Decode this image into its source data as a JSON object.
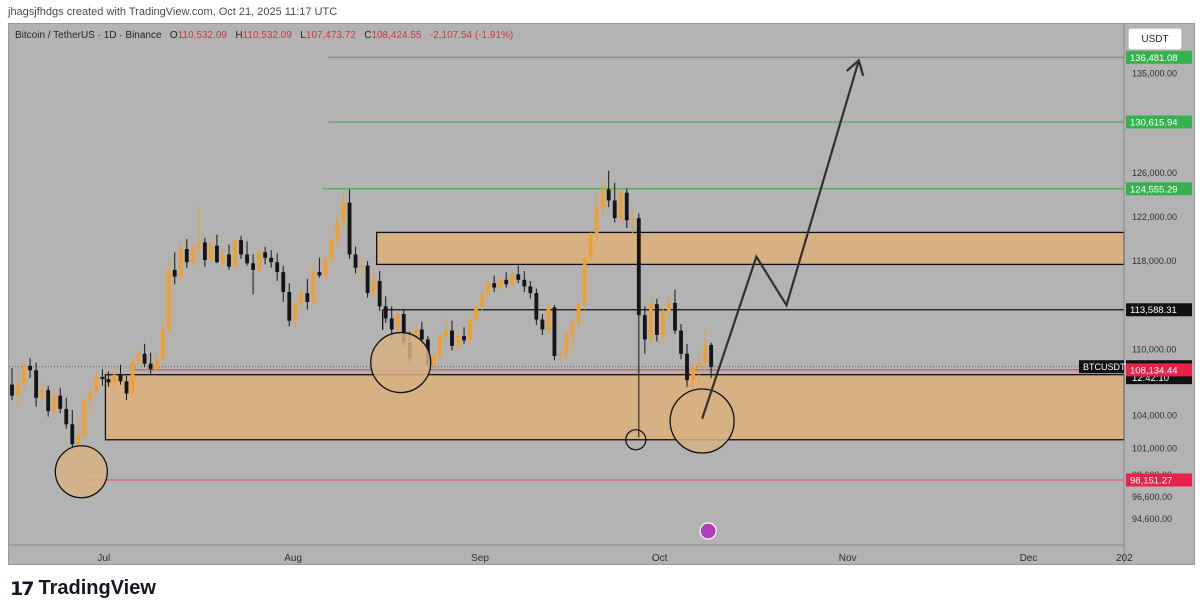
{
  "caption": "jhagsjfhdgs created with TradingView.com, Oct 21, 2025 11:17 UTC",
  "header": {
    "symbol": "Bitcoin / TetherUS · 1D · Binance",
    "open_label": "O",
    "open": "110,532.09",
    "high_label": "H",
    "high": "110,532.09",
    "low_label": "L",
    "low": "107,473.72",
    "close_label": "C",
    "close": "108,424.55",
    "change": "-2,107.54 (-1.91%)"
  },
  "currency_button": "USDT",
  "brand": {
    "logo": "17",
    "name": "TradingView"
  },
  "colors": {
    "background": "#b3b3b3",
    "bull": "#f0a030",
    "bear": "#151515",
    "zone_fill": "#d7b183",
    "resistance_line": "#3dab3d",
    "support_line": "#e04050",
    "projection": "#303030",
    "label_green": "#36b14f",
    "label_red": "#e8234a"
  },
  "chart_data": {
    "type": "candlestick",
    "symbol": "BTCUSDT",
    "timeframe": "1D",
    "x_ticks": [
      "Jul",
      "Aug",
      "Sep",
      "Oct",
      "Nov",
      "Dec",
      "202"
    ],
    "y_ticks": [
      "135,000.00",
      "126,000.00",
      "122,000.00",
      "118,000.00",
      "110,000.00",
      "104,000.00",
      "101,000.00",
      "98,600.00",
      "96,600.00",
      "94,600.00"
    ],
    "y_tick_values": [
      135000,
      126000,
      122000,
      118000,
      110000,
      104000,
      101000,
      98600,
      96600,
      94600
    ],
    "price_labels": [
      {
        "text": "136,481.08",
        "value": 136481.08,
        "style": "green"
      },
      {
        "text": "130,615.94",
        "value": 130615.94,
        "style": "green"
      },
      {
        "text": "124,555.29",
        "value": 124555.29,
        "style": "green"
      },
      {
        "text": "113,588.31",
        "value": 113588.31,
        "style": "black"
      },
      {
        "text": "108,424.55",
        "value": 108424.55,
        "style": "black",
        "tag": "BTCUSDT",
        "countdown": "12:42:10"
      },
      {
        "text": "108,134.44",
        "value": 108134.44,
        "style": "red"
      },
      {
        "text": "98,151.27",
        "value": 98151.27,
        "style": "red"
      }
    ],
    "ohlc_days_from_jun_15": [
      [
        0,
        106800,
        108300,
        105400,
        105800
      ],
      [
        1,
        105800,
        107900,
        104600,
        106900
      ],
      [
        2,
        106900,
        108900,
        106200,
        108500
      ],
      [
        3,
        108500,
        109200,
        107400,
        108100
      ],
      [
        4,
        108100,
        108800,
        104800,
        105600
      ],
      [
        5,
        105600,
        107000,
        105200,
        106300
      ],
      [
        6,
        106300,
        106700,
        103900,
        104400
      ],
      [
        7,
        104400,
        106200,
        104000,
        105800
      ],
      [
        8,
        105800,
        106500,
        104200,
        104600
      ],
      [
        9,
        104600,
        105600,
        102800,
        103200
      ],
      [
        10,
        103200,
        104500,
        100900,
        101400
      ],
      [
        11,
        101400,
        103800,
        99600,
        102200
      ],
      [
        12,
        102200,
        105600,
        101800,
        105400
      ],
      [
        13,
        105400,
        106600,
        104300,
        106100
      ],
      [
        14,
        106100,
        108100,
        105900,
        107500
      ],
      [
        15,
        107500,
        108200,
        106700,
        107300
      ],
      [
        16,
        107300,
        108000,
        106600,
        107000
      ],
      [
        17,
        107000,
        108400,
        106500,
        107700
      ],
      [
        18,
        107700,
        108600,
        106800,
        107100
      ],
      [
        19,
        107100,
        107600,
        105400,
        106000
      ],
      [
        20,
        106000,
        109400,
        105800,
        108900
      ],
      [
        21,
        108900,
        110200,
        108300,
        109600
      ],
      [
        22,
        109600,
        110500,
        108400,
        108700
      ],
      [
        23,
        108700,
        109700,
        107800,
        108200
      ],
      [
        24,
        108200,
        109400,
        107900,
        109100
      ],
      [
        25,
        109100,
        112600,
        108900,
        111800
      ],
      [
        26,
        111800,
        118200,
        111500,
        117200
      ],
      [
        27,
        117200,
        118800,
        115900,
        116600
      ],
      [
        28,
        116600,
        119600,
        116200,
        119100
      ],
      [
        29,
        119100,
        120000,
        117400,
        117900
      ],
      [
        30,
        117900,
        119600,
        117600,
        119200
      ],
      [
        31,
        119200,
        123100,
        118400,
        119700
      ],
      [
        32,
        119700,
        120100,
        117500,
        118100
      ],
      [
        33,
        118100,
        120300,
        117800,
        119400
      ],
      [
        34,
        119400,
        120400,
        117800,
        117900
      ],
      [
        35,
        117900,
        119200,
        117300,
        118600
      ],
      [
        36,
        118600,
        119500,
        117200,
        117500
      ],
      [
        37,
        117500,
        120100,
        117300,
        119900
      ],
      [
        38,
        119900,
        120300,
        118200,
        118600
      ],
      [
        39,
        118600,
        119800,
        117600,
        117800
      ],
      [
        40,
        117800,
        118600,
        115000,
        117200
      ],
      [
        41,
        117200,
        119200,
        116900,
        118800
      ],
      [
        42,
        118800,
        119300,
        117700,
        118300
      ],
      [
        43,
        118300,
        119000,
        117400,
        117900
      ],
      [
        44,
        117900,
        118700,
        116200,
        117000
      ],
      [
        45,
        117000,
        117600,
        114300,
        115200
      ],
      [
        46,
        115200,
        116000,
        112100,
        112600
      ],
      [
        47,
        112600,
        114400,
        111900,
        114200
      ],
      [
        48,
        114200,
        115800,
        113800,
        115100
      ],
      [
        49,
        115100,
        116400,
        113600,
        114300
      ],
      [
        50,
        114300,
        117700,
        114000,
        117000
      ],
      [
        51,
        117000,
        118300,
        116500,
        116700
      ],
      [
        52,
        116700,
        118500,
        116200,
        118200
      ],
      [
        53,
        118200,
        120300,
        117600,
        119900
      ],
      [
        54,
        119900,
        122200,
        119400,
        121600
      ],
      [
        55,
        121600,
        124200,
        120900,
        123300
      ],
      [
        56,
        123300,
        124500,
        118200,
        118600
      ],
      [
        57,
        118600,
        119300,
        116900,
        117400
      ],
      [
        58,
        117400,
        118300,
        116400,
        117600
      ],
      [
        59,
        117600,
        118000,
        114700,
        115100
      ],
      [
        60,
        115100,
        117300,
        114600,
        116200
      ],
      [
        61,
        116200,
        117100,
        113500,
        113900
      ],
      [
        62,
        113900,
        114800,
        112400,
        112800
      ],
      [
        63,
        112800,
        113900,
        110900,
        111800
      ],
      [
        64,
        111800,
        113400,
        111300,
        113200
      ],
      [
        65,
        113200,
        113600,
        110300,
        110600
      ],
      [
        66,
        110600,
        111600,
        108700,
        109200
      ],
      [
        67,
        109200,
        112200,
        108700,
        111800
      ],
      [
        68,
        111800,
        112500,
        110500,
        110900
      ],
      [
        69,
        110900,
        111200,
        108300,
        108600
      ],
      [
        70,
        108600,
        109800,
        108000,
        109400
      ],
      [
        71,
        109400,
        111400,
        108900,
        111200
      ],
      [
        72,
        111200,
        112800,
        110700,
        111700
      ],
      [
        73,
        111700,
        112600,
        109900,
        110300
      ],
      [
        74,
        110300,
        111600,
        109800,
        111200
      ],
      [
        75,
        111200,
        112000,
        110500,
        110800
      ],
      [
        76,
        110800,
        113000,
        110400,
        112700
      ],
      [
        77,
        112700,
        114000,
        112200,
        113900
      ],
      [
        78,
        113900,
        115200,
        113500,
        115000
      ],
      [
        79,
        115000,
        116300,
        114700,
        116000
      ],
      [
        80,
        116000,
        116700,
        115200,
        115600
      ],
      [
        81,
        115600,
        116600,
        115200,
        116300
      ],
      [
        82,
        116300,
        117000,
        115600,
        115900
      ],
      [
        83,
        115900,
        117200,
        115500,
        116800
      ],
      [
        84,
        116800,
        117600,
        116000,
        116300
      ],
      [
        85,
        116300,
        117100,
        115200,
        115700
      ],
      [
        86,
        115700,
        116200,
        114600,
        115100
      ],
      [
        87,
        115100,
        115500,
        112200,
        112700
      ],
      [
        88,
        112700,
        113200,
        111300,
        111800
      ],
      [
        89,
        111800,
        114200,
        111400,
        113800
      ],
      [
        90,
        113800,
        114000,
        109000,
        109400
      ],
      [
        91,
        109400,
        109900,
        108800,
        109600
      ],
      [
        92,
        109600,
        111800,
        109100,
        111400
      ],
      [
        93,
        111400,
        113000,
        110200,
        112500
      ],
      [
        94,
        112500,
        114300,
        112000,
        114100
      ],
      [
        95,
        114100,
        118600,
        113600,
        118300
      ],
      [
        96,
        118300,
        120600,
        117900,
        120400
      ],
      [
        97,
        120400,
        123900,
        119800,
        122800
      ],
      [
        98,
        122800,
        125600,
        122100,
        124500
      ],
      [
        99,
        124500,
        126200,
        122900,
        123500
      ],
      [
        100,
        123500,
        125100,
        121500,
        121900
      ],
      [
        101,
        121900,
        124600,
        121300,
        124200
      ],
      [
        102,
        124200,
        124600,
        121000,
        121700
      ],
      [
        103,
        121700,
        122700,
        120400,
        121900
      ],
      [
        104,
        121900,
        122300,
        102000,
        113100
      ],
      [
        105,
        113100,
        113900,
        109600,
        110900
      ],
      [
        106,
        110900,
        114600,
        110400,
        114100
      ],
      [
        107,
        114100,
        114600,
        110700,
        111300
      ],
      [
        108,
        111300,
        113900,
        110600,
        113500
      ],
      [
        109,
        113500,
        114900,
        112800,
        114200
      ],
      [
        110,
        114200,
        115400,
        111400,
        111700
      ],
      [
        111,
        111700,
        112300,
        109100,
        109600
      ],
      [
        112,
        109600,
        110500,
        106600,
        107200
      ],
      [
        113,
        107200,
        108800,
        104000,
        108300
      ],
      [
        114,
        108300,
        109600,
        106800,
        108800
      ],
      [
        115,
        108800,
        111800,
        108100,
        110400
      ],
      [
        116,
        110400,
        110600,
        107400,
        108400
      ]
    ],
    "zones": [
      {
        "name": "resistance-zone",
        "top": 120600,
        "bottom": 117700,
        "from_day": 61,
        "to_day": 185
      },
      {
        "name": "support-zone",
        "top": 107700,
        "bottom": 101800,
        "from_day": 16,
        "to_day": 185
      }
    ],
    "horizontal_lines": [
      {
        "value": 136481.08,
        "color": "green",
        "from_day": 53
      },
      {
        "value": 130615.94,
        "color": "green",
        "from_day": 53
      },
      {
        "value": 124555.29,
        "color": "green",
        "from_day": 52
      },
      {
        "value": 113588.31,
        "color": "black",
        "from_day": 62
      },
      {
        "value": 98151.27,
        "color": "red",
        "from_day": 12
      },
      {
        "value": 108134.44,
        "color": "red",
        "from_day": 20
      },
      {
        "value": 108424.55,
        "color": "dotted",
        "from_day": 0
      }
    ],
    "projection_path": [
      [
        115,
        103700
      ],
      [
        124,
        118400
      ],
      [
        129,
        114000
      ],
      [
        141,
        136200
      ]
    ],
    "circles": [
      {
        "day": 12,
        "value": 98900
      },
      {
        "day": 65,
        "value": 108800
      },
      {
        "day": 115,
        "value": 103500
      },
      {
        "day": 104,
        "value": 101800
      }
    ],
    "ylim": [
      92800,
      139500
    ],
    "xlim_days": [
      0,
      185
    ]
  }
}
